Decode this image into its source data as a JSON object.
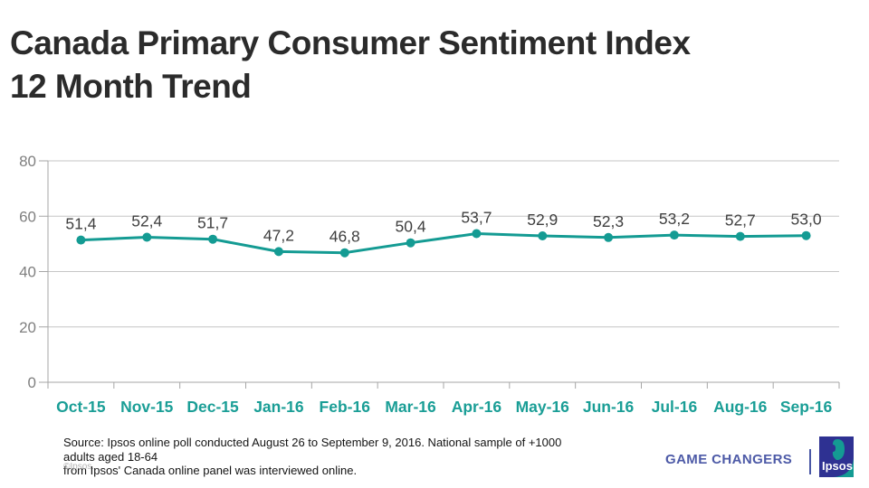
{
  "title": {
    "line1": "Canada Primary Consumer Sentiment Index",
    "line2": "12 Month Trend"
  },
  "chart_data": {
    "type": "line",
    "title": "Canada Primary Consumer Sentiment Index - 12 Month Trend",
    "categories": [
      "Oct-15",
      "Nov-15",
      "Dec-15",
      "Jan-16",
      "Feb-16",
      "Mar-16",
      "Apr-16",
      "May-16",
      "Jun-16",
      "Jul-16",
      "Aug-16",
      "Sep-16"
    ],
    "series": [
      {
        "name": "Primary Consumer Sentiment Index",
        "values": [
          51.4,
          52.4,
          51.7,
          47.2,
          46.8,
          50.4,
          53.7,
          52.9,
          52.3,
          53.2,
          52.7,
          53.0
        ]
      }
    ],
    "point_labels": [
      "51,4",
      "52,4",
      "51,7",
      "47,2",
      "46,8",
      "50,4",
      "53,7",
      "52,9",
      "52,3",
      "53,2",
      "52,7",
      "53,0"
    ],
    "xlabel": "",
    "ylabel": "",
    "ylim": [
      0,
      80
    ],
    "yticks": [
      0,
      20,
      40,
      60,
      80
    ],
    "grid": true,
    "legend": false
  },
  "footer": {
    "source_line1": "Source: Ipsos online poll conducted August 26 to September 9, 2016. National sample of +1000 adults aged 18-64",
    "source_line2": "from Ipsos' Canada online panel was interviewed online.",
    "copyright": "©Ipsos.",
    "tagline": "GAME CHANGERS",
    "logo_text": "Ipsos"
  },
  "colors": {
    "line": "#149b93",
    "marker": "#149b93",
    "month_labels": "#1a9e96",
    "data_labels": "#3f3f3f",
    "axis": "#a6a6a6",
    "gridline": "#c6c6c6",
    "y_labels": "#7f7f7f",
    "title": "#2b2b2b",
    "tagline": "#4d5aa7",
    "logo_blue": "#2e3192",
    "logo_teal": "#149b93"
  }
}
